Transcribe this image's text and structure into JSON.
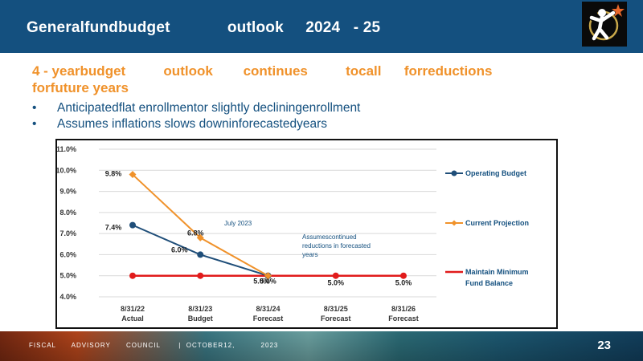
{
  "header": {
    "title": "Generalfundbudget             outlook     2024   - 25"
  },
  "subheading": "4 - yearbudget          outlook        continues          tocall      forreductions               forfuture years",
  "bullets": [
    "Anticipatedflat enrollmentor slightly decliningenrollment",
    "Assumes inflations slows downinforecastedyears"
  ],
  "chart_data": {
    "type": "line",
    "categories": [
      [
        "8/31/22",
        "Actual"
      ],
      [
        "8/31/23",
        "Budget"
      ],
      [
        "8/31/24",
        "Forecast"
      ],
      [
        "8/31/25",
        "Forecast"
      ],
      [
        "8/31/26",
        "Forecast"
      ]
    ],
    "ylim": [
      4.0,
      11.0
    ],
    "yticks": [
      "4.0%",
      "5.0%",
      "6.0%",
      "7.0%",
      "8.0%",
      "9.0%",
      "10.0%",
      "11.0%"
    ],
    "grid": true,
    "legend_position": "right",
    "series": [
      {
        "name": "Operating      Budget",
        "color": "#1f4e79",
        "marker": "circle",
        "values": [
          7.4,
          6.0,
          5.0,
          null,
          null
        ],
        "labels": [
          "7.4%",
          "6.0%",
          "5.0%",
          "",
          ""
        ]
      },
      {
        "name": "Current      Projection",
        "color": "#f0922b",
        "marker": "diamond",
        "values": [
          9.8,
          6.8,
          5.0,
          null,
          null
        ],
        "labels": [
          "9.8%",
          "6.8%",
          "",
          "",
          ""
        ]
      },
      {
        "name": "Maintain      Minimum Fund     Balance",
        "color": "#e11b1b",
        "marker": "circle",
        "values": [
          5.0,
          5.0,
          5.0,
          5.0,
          5.0
        ],
        "labels": [
          "",
          "",
          "5.0%",
          "5.0%",
          "5.0%"
        ]
      }
    ],
    "annotations": [
      {
        "text": "July      2023"
      },
      {
        "text": [
          "Assumescontinued",
          "reductions          in    forecasted",
          "years"
        ]
      }
    ]
  },
  "footer": {
    "text": "FISCAL      ADVISORY      COUNCIL       |  OCTOBER12,          2023",
    "page_number": "23"
  },
  "colors": {
    "header_bg": "#14507f",
    "accent_orange": "#f0922b",
    "text_blue": "#14507f",
    "operating": "#1f4e79",
    "projection": "#f0922b",
    "minimum": "#e11b1b"
  },
  "icons": {
    "logo": "person-with-globe-and-star-logo"
  }
}
